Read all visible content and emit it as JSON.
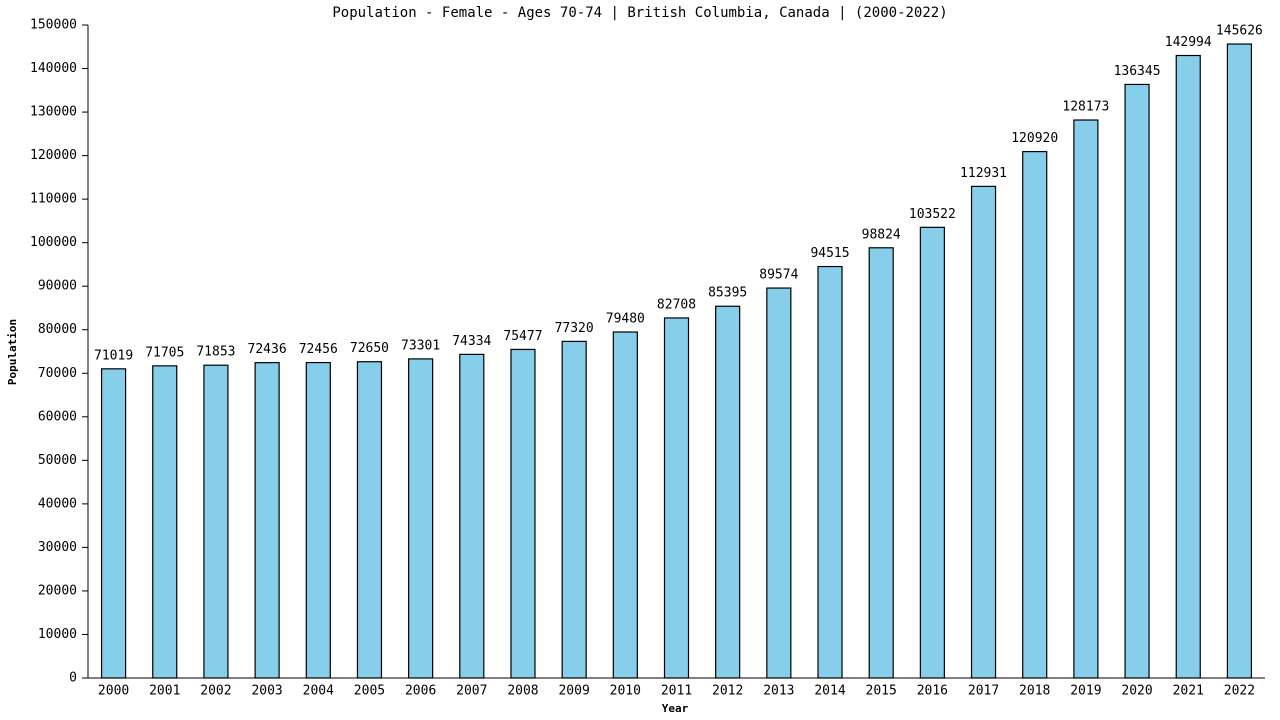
{
  "chart_data": {
    "type": "bar",
    "title": "Population - Female - Ages 70-74 | British Columbia, Canada |  (2000-2022)",
    "x_label": "Year",
    "y_label": "Population",
    "categories": [
      "2000",
      "2001",
      "2002",
      "2003",
      "2004",
      "2005",
      "2006",
      "2007",
      "2008",
      "2009",
      "2010",
      "2011",
      "2012",
      "2013",
      "2014",
      "2015",
      "2016",
      "2017",
      "2018",
      "2019",
      "2020",
      "2021",
      "2022"
    ],
    "values": [
      71019,
      71705,
      71853,
      72436,
      72456,
      72650,
      73301,
      74334,
      75477,
      77320,
      79480,
      82708,
      85395,
      89574,
      94515,
      98824,
      103522,
      112931,
      120920,
      128173,
      136345,
      142994,
      145626
    ],
    "color": "#87ceeb",
    "ylim": [
      0,
      150000
    ],
    "yticks": [
      0,
      10000,
      20000,
      30000,
      40000,
      50000,
      60000,
      70000,
      80000,
      90000,
      100000,
      110000,
      120000,
      130000,
      140000,
      150000
    ],
    "grid": false
  }
}
